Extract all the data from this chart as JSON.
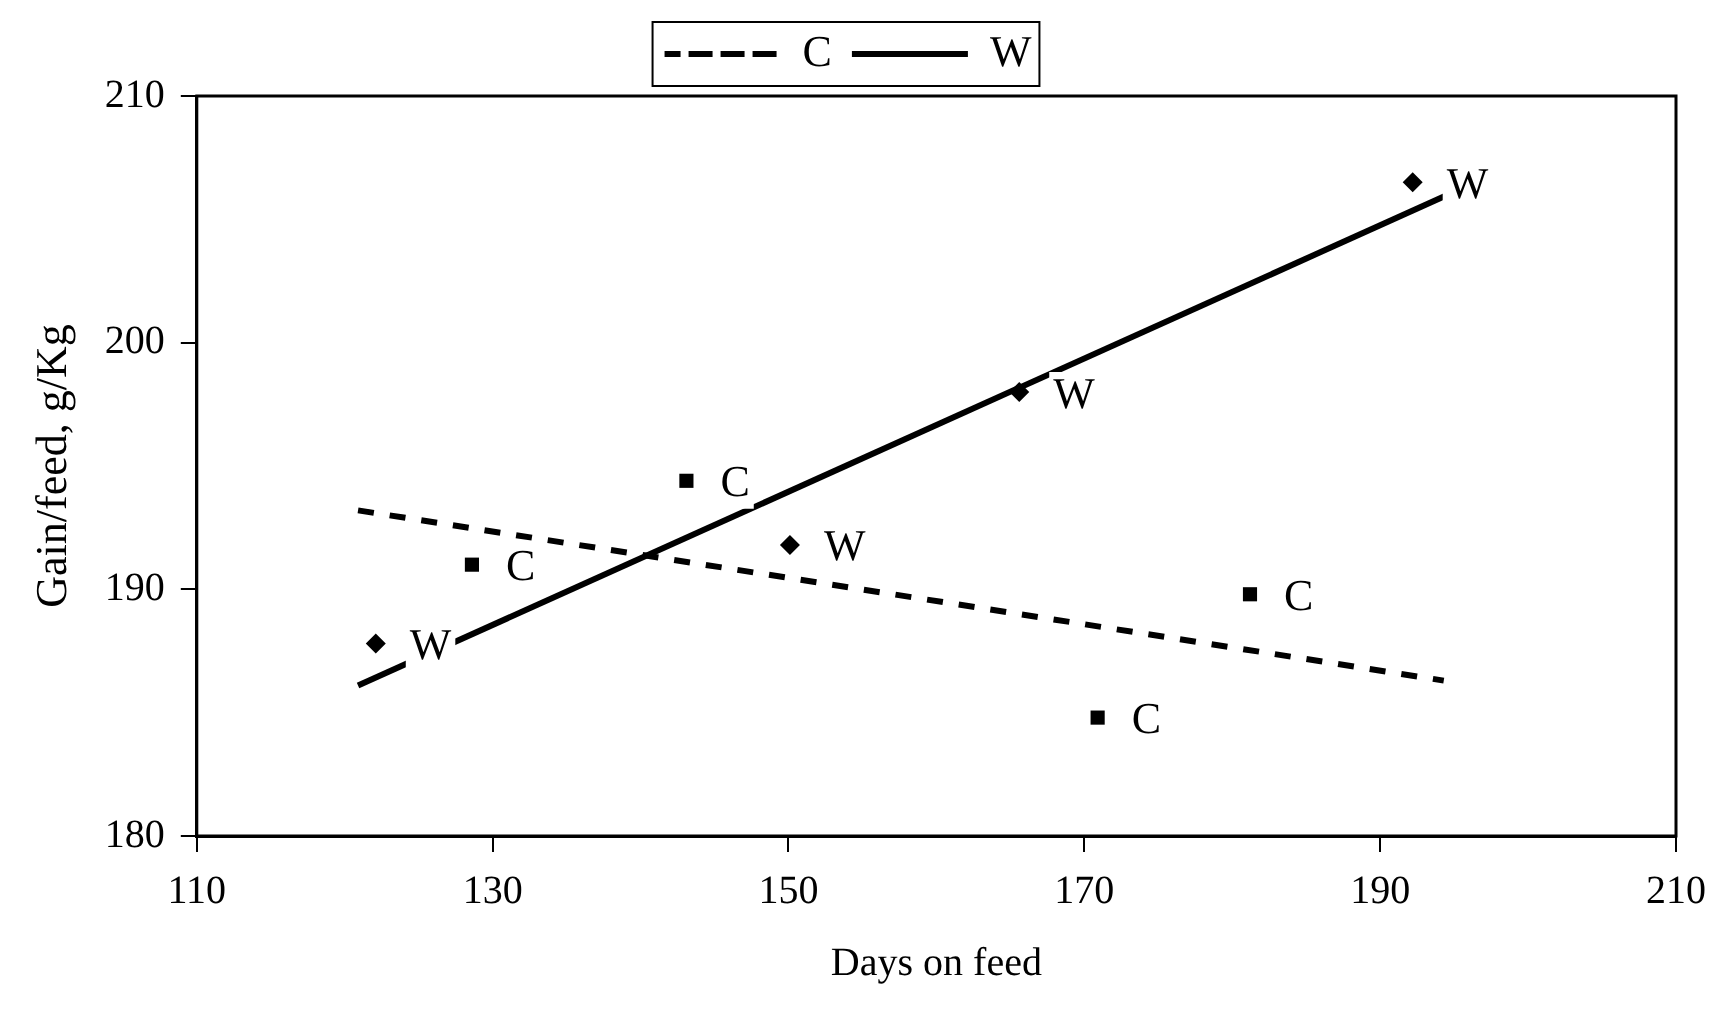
{
  "chart_data": {
    "type": "scatter",
    "xlabel": "Days on feed",
    "ylabel": "Gain/feed, g/Kg",
    "xlim": [
      110,
      210
    ],
    "xticks": [
      110,
      130,
      150,
      170,
      190,
      210
    ],
    "ylim": [
      180,
      210
    ],
    "yticks": [
      180,
      190,
      200,
      210
    ],
    "grid": false,
    "legend": "top",
    "series": [
      {
        "name": "C",
        "type": "line",
        "color": "#000000",
        "line_style": "dashed",
        "x": [
          120.9,
          194.3
        ],
        "values": [
          193.2,
          186.3
        ]
      },
      {
        "name": "W",
        "type": "line",
        "color": "#000000",
        "line_style": "solid",
        "x": [
          120.9,
          195.7
        ],
        "values": [
          186.1,
          206.3
        ]
      },
      {
        "type": "scatter",
        "color": "#000000",
        "marker": "square",
        "x": [
          128.6,
          143.1,
          170.9,
          181.2
        ],
        "values": [
          191.0,
          194.4,
          184.8,
          189.8
        ]
      },
      {
        "type": "scatter",
        "color": "#000000",
        "marker": "diamond",
        "x": [
          122.1,
          150.1,
          165.6,
          192.2
        ],
        "values": [
          187.8,
          191.8,
          198.0,
          206.5
        ]
      }
    ],
    "annotations": [
      {
        "text": "C",
        "x": 128.6,
        "y": 191.0
      },
      {
        "text": "C",
        "x": 143.1,
        "y": 194.4
      },
      {
        "text": "C",
        "x": 170.9,
        "y": 184.8
      },
      {
        "text": "C",
        "x": 181.2,
        "y": 189.8
      },
      {
        "text": "W",
        "x": 122.1,
        "y": 187.8
      },
      {
        "text": "W",
        "x": 150.1,
        "y": 191.8
      },
      {
        "text": "W",
        "x": 165.6,
        "y": 198.0
      },
      {
        "text": "W",
        "x": 192.2,
        "y": 206.5
      }
    ]
  }
}
